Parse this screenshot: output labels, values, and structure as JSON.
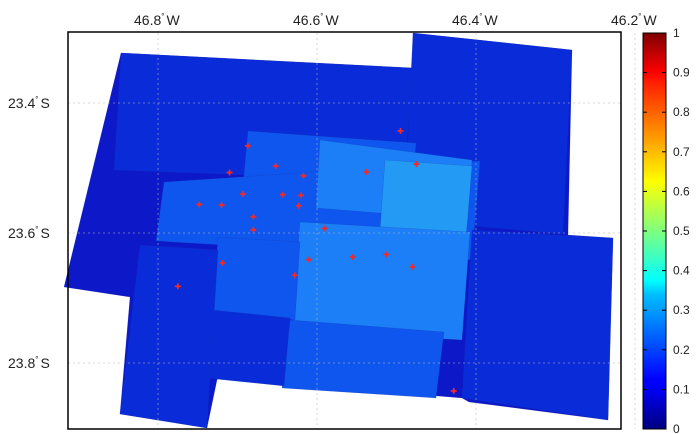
{
  "map": {
    "lon_ticks": [
      {
        "lon": -46.8,
        "label": "46.8",
        "suffix": "W"
      },
      {
        "lon": -46.6,
        "label": "46.6",
        "suffix": "W"
      },
      {
        "lon": -46.4,
        "label": "46.4",
        "suffix": "W"
      },
      {
        "lon": -46.2,
        "label": "46.2",
        "suffix": "W"
      }
    ],
    "lat_ticks": [
      {
        "lat": -23.4,
        "label": "23.4",
        "suffix": "S"
      },
      {
        "lat": -23.6,
        "label": "23.6",
        "suffix": "S"
      },
      {
        "lat": -23.8,
        "label": "23.8",
        "suffix": "S"
      }
    ],
    "degree_symbol": "°",
    "stations": [
      {
        "lon": -46.495,
        "lat": -23.443
      },
      {
        "lon": -46.687,
        "lat": -23.466
      },
      {
        "lon": -46.652,
        "lat": -23.497
      },
      {
        "lon": -46.71,
        "lat": -23.507
      },
      {
        "lon": -46.538,
        "lat": -23.506
      },
      {
        "lon": -46.475,
        "lat": -23.494
      },
      {
        "lon": -46.617,
        "lat": -23.512
      },
      {
        "lon": -46.693,
        "lat": -23.54
      },
      {
        "lon": -46.643,
        "lat": -23.541
      },
      {
        "lon": -46.62,
        "lat": -23.542
      },
      {
        "lon": -46.748,
        "lat": -23.556
      },
      {
        "lon": -46.72,
        "lat": -23.557
      },
      {
        "lon": -46.623,
        "lat": -23.558
      },
      {
        "lon": -46.68,
        "lat": -23.575
      },
      {
        "lon": -46.68,
        "lat": -23.595
      },
      {
        "lon": -46.59,
        "lat": -23.593
      },
      {
        "lon": -46.719,
        "lat": -23.646
      },
      {
        "lon": -46.61,
        "lat": -23.641
      },
      {
        "lon": -46.555,
        "lat": -23.637
      },
      {
        "lon": -46.513,
        "lat": -23.633
      },
      {
        "lon": -46.48,
        "lat": -23.652
      },
      {
        "lon": -46.628,
        "lat": -23.665
      },
      {
        "lon": -46.775,
        "lat": -23.682
      },
      {
        "lon": -46.428,
        "lat": -23.843
      }
    ]
  },
  "colorbar": {
    "min": 0,
    "max": 1,
    "ticks": [
      "0",
      "0.1",
      "0.2",
      "0.3",
      "0.4",
      "0.5",
      "0.6",
      "0.7",
      "0.8",
      "0.9",
      "1"
    ],
    "colormap": "jet"
  },
  "colors": {
    "dark_blue": "#0d19c9",
    "blue": "#0a2cd8",
    "mid_blue": "#0e56ee",
    "light_blue": "#1c7ff7",
    "lighter_blue": "#239bf5",
    "station_marker": "#ee2a2a"
  }
}
